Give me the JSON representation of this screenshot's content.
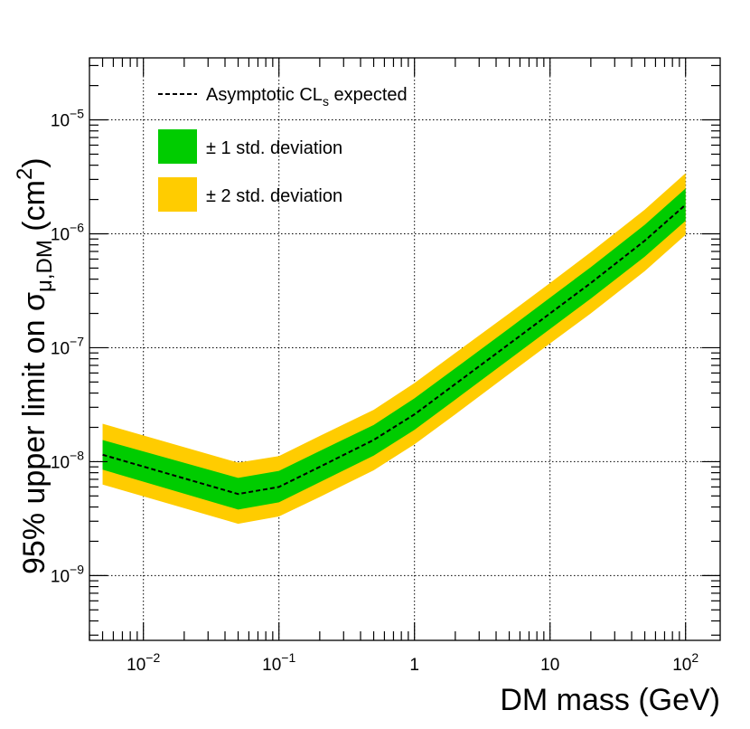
{
  "chart_data": {
    "type": "area",
    "xscale": "log",
    "yscale": "log",
    "xlim": [
      0.004,
      180
    ],
    "ylim": [
      2.7e-10,
      3.5e-05
    ],
    "xlabel": "DM mass (GeV)",
    "ylabel": {
      "main": "95% upper limit on σ",
      "subscript": "μ,DM",
      "unit_open": " (cm",
      "unit_sup": "2",
      "unit_close": ")"
    },
    "x_ticks": [
      {
        "base": "10",
        "exp": "−2",
        "value": 0.01
      },
      {
        "base": "10",
        "exp": "−1",
        "value": 0.1
      },
      {
        "base": "1",
        "exp": "",
        "value": 1
      },
      {
        "base": "10",
        "exp": "",
        "value": 10
      },
      {
        "base": "10",
        "exp": "2",
        "value": 100
      }
    ],
    "y_ticks": [
      {
        "base": "10",
        "exp": "−9",
        "value": 1e-09
      },
      {
        "base": "10",
        "exp": "−8",
        "value": 1e-08
      },
      {
        "base": "10",
        "exp": "−7",
        "value": 1e-07
      },
      {
        "base": "10",
        "exp": "−6",
        "value": 1e-06
      },
      {
        "base": "10",
        "exp": "−5",
        "value": 1e-05
      }
    ],
    "grid": true,
    "x": [
      0.005,
      0.05,
      0.1,
      0.2,
      0.5,
      1,
      2,
      5,
      10,
      20,
      50,
      100
    ],
    "series": [
      {
        "name": "Asymptotic CL_s expected",
        "style": "dashed-line",
        "color": "#000000",
        "values": [
          1.15e-08,
          5.2e-09,
          6e-09,
          9e-09,
          1.55e-08,
          2.6e-08,
          4.8e-08,
          1.08e-07,
          2e-07,
          3.7e-07,
          8.7e-07,
          1.8e-06
        ]
      },
      {
        "name": "± 1 std. deviation",
        "style": "band",
        "color": "#00cc00",
        "lower": [
          8.5e-09,
          3.8e-09,
          4.4e-09,
          6.6e-09,
          1.13e-08,
          1.9e-08,
          3.5e-08,
          7.9e-08,
          1.46e-07,
          2.7e-07,
          6.3e-07,
          1.3e-06
        ],
        "upper": [
          1.55e-08,
          7.2e-09,
          8.3e-09,
          1.24e-08,
          2.1e-08,
          3.6e-08,
          6.6e-08,
          1.48e-07,
          2.75e-07,
          5.1e-07,
          1.2e-06,
          2.5e-06
        ]
      },
      {
        "name": "± 2 std. deviation",
        "style": "band",
        "color": "#ffcc00",
        "lower": [
          6.3e-09,
          2.85e-09,
          3.3e-09,
          4.9e-09,
          8.4e-09,
          1.42e-08,
          2.6e-08,
          5.9e-08,
          1.09e-07,
          2e-07,
          4.7e-07,
          9.8e-07
        ],
        "upper": [
          2.15e-08,
          9.8e-09,
          1.12e-08,
          1.68e-08,
          2.85e-08,
          4.9e-08,
          9e-08,
          2e-07,
          3.7e-07,
          6.9e-07,
          1.63e-06,
          3.4e-06
        ]
      }
    ],
    "legend": {
      "position": "top-left",
      "expected_label": "Asymptotic CL",
      "expected_label_sub": "s",
      "expected_label_suffix": " expected",
      "one_sigma_label": "± 1 std. deviation",
      "two_sigma_label": "± 2 std. deviation"
    }
  }
}
